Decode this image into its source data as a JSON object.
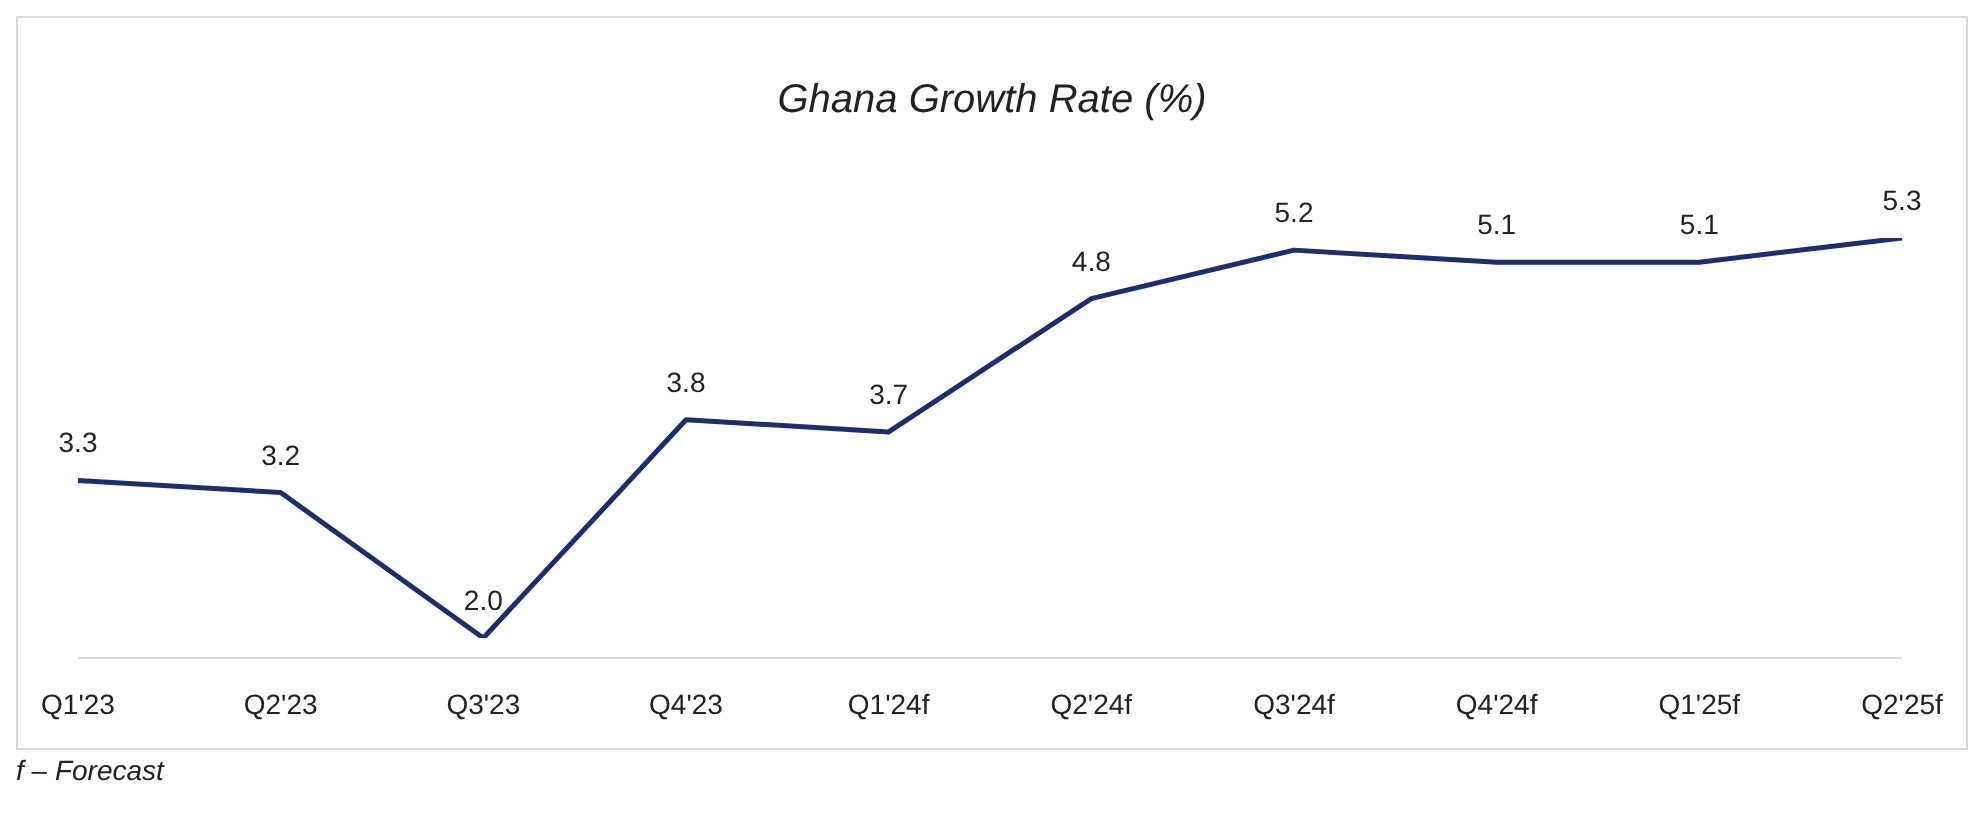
{
  "chart_data": {
    "type": "line",
    "title": "Ghana Growth Rate (%)",
    "categories": [
      "Q1'23",
      "Q2'23",
      "Q3'23",
      "Q4'23",
      "Q1'24f",
      "Q2'24f",
      "Q3'24f",
      "Q4'24f",
      "Q1'25f",
      "Q2'25f"
    ],
    "values": [
      3.3,
      3.2,
      2.0,
      3.8,
      3.7,
      4.8,
      5.2,
      5.1,
      5.1,
      5.3
    ],
    "value_labels": [
      "3.3",
      "3.2",
      "2.0",
      "3.8",
      "3.7",
      "4.8",
      "5.2",
      "5.1",
      "5.1",
      "5.3"
    ],
    "color": "#1f2d6b",
    "tick_labels": "x",
    "marker": "none",
    "line_style": "solid",
    "annotations": [
      "f – Forecast"
    ]
  }
}
